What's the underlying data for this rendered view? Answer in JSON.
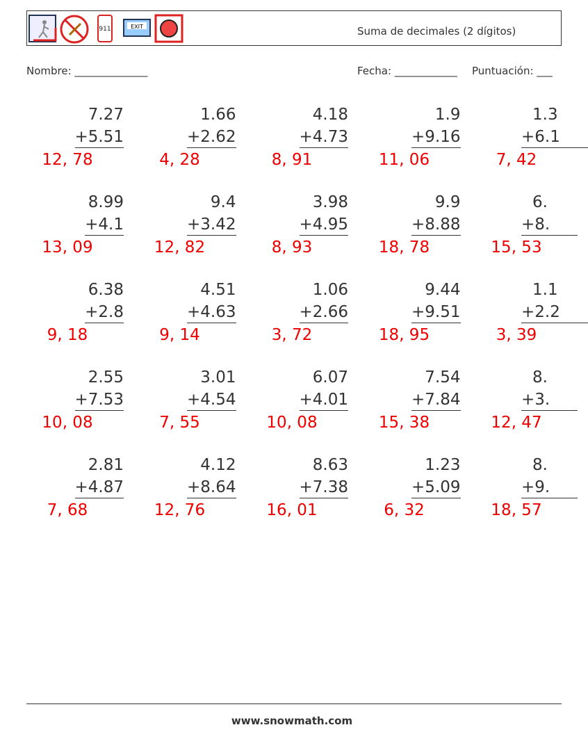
{
  "header": {
    "title": "Suma de decimales (2 dígitos)"
  },
  "fields": {
    "name": "Nombre: ______________",
    "date": "Fecha: ____________",
    "score": "Puntuación: ___"
  },
  "problems": [
    [
      {
        "top": "7.27",
        "bottom": "+5.51",
        "answer": "12, 78"
      },
      {
        "top": "1.66",
        "bottom": "+2.62",
        "answer": "4, 28"
      },
      {
        "top": "4.18",
        "bottom": "+4.73",
        "answer": "8, 91"
      },
      {
        "top": "1.9",
        "bottom": "+9.16",
        "answer": "11, 06"
      },
      {
        "top": "1.3",
        "bottom": "+6.1",
        "answer": "7, 42"
      }
    ],
    [
      {
        "top": "8.99",
        "bottom": "+4.1",
        "answer": "13, 09"
      },
      {
        "top": "9.4",
        "bottom": "+3.42",
        "answer": "12, 82"
      },
      {
        "top": "3.98",
        "bottom": "+4.95",
        "answer": "8, 93"
      },
      {
        "top": "9.9",
        "bottom": "+8.88",
        "answer": "18, 78"
      },
      {
        "top": "6.",
        "bottom": "+8.",
        "answer": "15, 53"
      }
    ],
    [
      {
        "top": "6.38",
        "bottom": "+2.8",
        "answer": "9, 18"
      },
      {
        "top": "4.51",
        "bottom": "+4.63",
        "answer": "9, 14"
      },
      {
        "top": "1.06",
        "bottom": "+2.66",
        "answer": "3, 72"
      },
      {
        "top": "9.44",
        "bottom": "+9.51",
        "answer": "18, 95"
      },
      {
        "top": "1.1",
        "bottom": "+2.2",
        "answer": "3, 39"
      }
    ],
    [
      {
        "top": "2.55",
        "bottom": "+7.53",
        "answer": "10, 08"
      },
      {
        "top": "3.01",
        "bottom": "+4.54",
        "answer": "7, 55"
      },
      {
        "top": "6.07",
        "bottom": "+4.01",
        "answer": "10, 08"
      },
      {
        "top": "7.54",
        "bottom": "+7.84",
        "answer": "15, 38"
      },
      {
        "top": "8.",
        "bottom": "+3.",
        "answer": "12, 47"
      }
    ],
    [
      {
        "top": "2.81",
        "bottom": "+4.87",
        "answer": "7, 68"
      },
      {
        "top": "4.12",
        "bottom": "+8.64",
        "answer": "12, 76"
      },
      {
        "top": "8.63",
        "bottom": "+7.38",
        "answer": "16, 01"
      },
      {
        "top": "1.23",
        "bottom": "+5.09",
        "answer": "6, 32"
      },
      {
        "top": "8.",
        "bottom": "+9.",
        "answer": "18, 57"
      }
    ]
  ],
  "footer": {
    "site": "www.snowmath.com"
  }
}
